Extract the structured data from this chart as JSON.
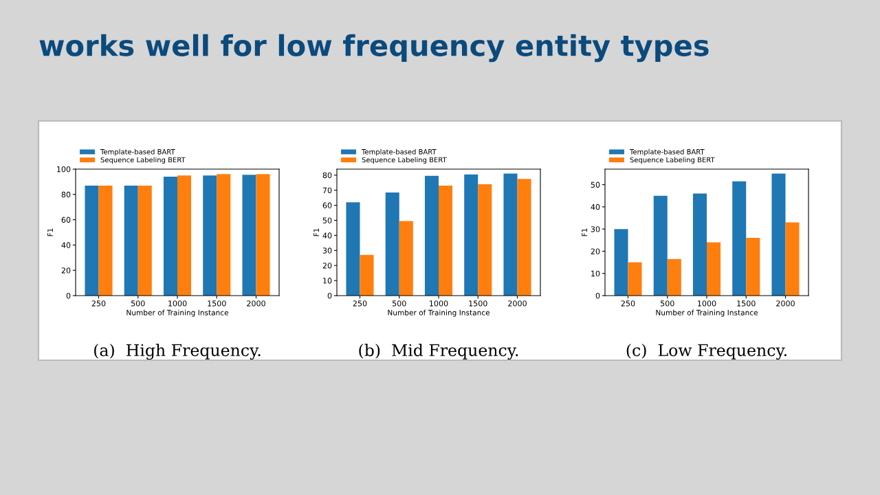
{
  "chart_data": [
    {
      "type": "bar",
      "title": "(a)  High Frequency.",
      "annotations": [
        "works well for low frequency entity types"
      ],
      "xlabel": "Number of Training Instance",
      "ylabel": "F1",
      "categories": [
        "250",
        "500",
        "1000",
        "1500",
        "2000"
      ],
      "series": [
        {
          "name": "Template-based BART",
          "color": "#1f77b4",
          "values": [
            87,
            87,
            94,
            95,
            95.5
          ]
        },
        {
          "name": "Sequence Labeling BERT",
          "color": "#ff7f0e",
          "values": [
            87,
            87,
            95,
            96,
            96
          ]
        }
      ],
      "ylim": [
        0,
        100
      ],
      "yticks": [
        0,
        20,
        40,
        60,
        80,
        100
      ],
      "legend": "top",
      "grid": false
    },
    {
      "type": "bar",
      "title": "(b)  Mid Frequency.",
      "xlabel": "Number of Training Instance",
      "ylabel": "F1",
      "categories": [
        "250",
        "500",
        "1000",
        "1500",
        "2000"
      ],
      "series": [
        {
          "name": "Template-based BART",
          "color": "#1f77b4",
          "values": [
            62,
            68.5,
            79.5,
            80.5,
            81
          ]
        },
        {
          "name": "Sequence Labeling BERT",
          "color": "#ff7f0e",
          "values": [
            27,
            49.5,
            73,
            74,
            77.5
          ]
        }
      ],
      "ylim": [
        0,
        84
      ],
      "yticks": [
        0,
        10,
        20,
        30,
        40,
        50,
        60,
        70,
        80
      ],
      "legend": "top",
      "grid": false
    },
    {
      "type": "bar",
      "title": "(c)  Low Frequency.",
      "xlabel": "Number of Training Instance",
      "ylabel": "F1",
      "categories": [
        "250",
        "500",
        "1000",
        "1500",
        "2000"
      ],
      "series": [
        {
          "name": "Template-based BART",
          "color": "#1f77b4",
          "values": [
            30,
            45,
            46,
            51.5,
            55
          ]
        },
        {
          "name": "Sequence Labeling BERT",
          "color": "#ff7f0e",
          "values": [
            15,
            16.5,
            24,
            26,
            33
          ]
        }
      ],
      "ylim": [
        0,
        57
      ],
      "yticks": [
        0,
        10,
        20,
        30,
        40,
        50
      ],
      "legend": "top",
      "grid": false
    }
  ]
}
